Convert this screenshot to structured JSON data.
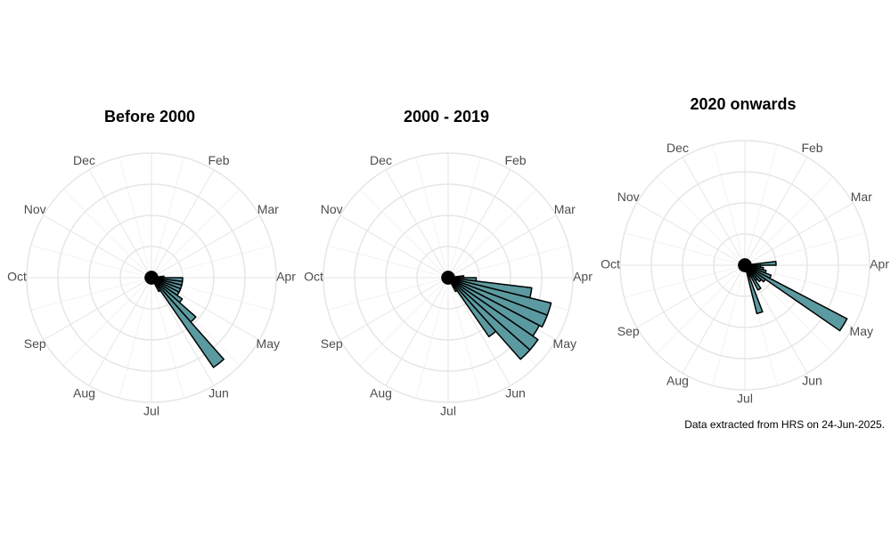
{
  "chart_data": [
    {
      "type": "polar_bar",
      "title": "Before 2000",
      "months": [
        null,
        "Feb",
        "Mar",
        "Apr",
        "May",
        "Jun",
        "Jul",
        "Aug",
        "Sep",
        "Oct",
        "Nov",
        "Dec"
      ],
      "x": [
        1,
        2,
        3,
        4,
        5,
        6,
        7,
        8,
        9,
        10,
        11,
        12,
        13,
        14,
        15,
        16,
        17,
        18,
        19,
        20,
        21,
        22,
        23,
        24,
        25,
        26,
        27,
        28,
        29,
        30,
        31,
        32,
        33,
        34,
        35,
        36,
        37,
        38,
        39,
        40,
        41,
        42,
        43,
        44,
        45,
        46,
        47,
        48,
        49,
        50,
        51,
        52
      ],
      "values": [
        0.2,
        0.2,
        0.2,
        0.2,
        0.2,
        0.2,
        0.2,
        0.2,
        0.2,
        0.2,
        0.2,
        0.2,
        0.4,
        1.0,
        1.0,
        1.0,
        1.0,
        1.0,
        1.2,
        1.9,
        3.5,
        0.5,
        0.2,
        0.2,
        0.2,
        0.2,
        0.2,
        0.2,
        0.2,
        0.2,
        0.2,
        0.2,
        0.2,
        0.2,
        0.2,
        0.2,
        0.2,
        0.2,
        0.2,
        0.2,
        0.2,
        0.2,
        0.2,
        0.2,
        0.2,
        0.2,
        0.2,
        0.2,
        0.2,
        0.2,
        0.2,
        0.2
      ],
      "xlim": [
        0,
        52
      ],
      "rlim": [
        0,
        4
      ],
      "rticks": [
        1,
        2,
        3,
        4
      ],
      "color": "#5b9aa0"
    },
    {
      "type": "polar_bar",
      "title": "2000 - 2019",
      "months": [
        null,
        "Feb",
        "Mar",
        "Apr",
        "May",
        "Jun",
        "Jul",
        "Aug",
        "Sep",
        "Oct",
        "Nov",
        "Dec"
      ],
      "x": [
        1,
        2,
        3,
        4,
        5,
        6,
        7,
        8,
        9,
        10,
        11,
        12,
        13,
        14,
        15,
        16,
        17,
        18,
        19,
        20,
        21,
        22,
        23,
        24,
        25,
        26,
        27,
        28,
        29,
        30,
        31,
        32,
        33,
        34,
        35,
        36,
        37,
        38,
        39,
        40,
        41,
        42,
        43,
        44,
        45,
        46,
        47,
        48,
        49,
        50,
        51,
        52
      ],
      "values": [
        0.2,
        0.2,
        0.2,
        0.2,
        0.2,
        0.2,
        0.2,
        0.2,
        0.2,
        0.2,
        0.2,
        0.2,
        0.5,
        0.9,
        2.7,
        3.4,
        3.4,
        3.3,
        3.5,
        3.5,
        2.3,
        0.5,
        0.2,
        0.2,
        0.2,
        0.2,
        0.2,
        0.2,
        0.2,
        0.2,
        0.2,
        0.2,
        0.2,
        0.2,
        0.2,
        0.2,
        0.2,
        0.2,
        0.2,
        0.2,
        0.2,
        0.2,
        0.2,
        0.2,
        0.2,
        0.2,
        0.2,
        0.2,
        0.2,
        0.2,
        0.2,
        0.2
      ],
      "xlim": [
        0,
        52
      ],
      "rlim": [
        0,
        4
      ],
      "rticks": [
        1,
        2,
        3,
        4
      ],
      "color": "#5b9aa0"
    },
    {
      "type": "polar_bar",
      "title": "2020 onwards",
      "months": [
        null,
        "Feb",
        "Mar",
        "Apr",
        "May",
        "Jun",
        "Jul",
        "Aug",
        "Sep",
        "Oct",
        "Nov",
        "Dec"
      ],
      "x": [
        1,
        2,
        3,
        4,
        5,
        6,
        7,
        8,
        9,
        10,
        11,
        12,
        13,
        14,
        15,
        16,
        17,
        18,
        19,
        20,
        21,
        22,
        23,
        24,
        25,
        26,
        27,
        28,
        29,
        30,
        31,
        32,
        33,
        34,
        35,
        36,
        37,
        38,
        39,
        40,
        41,
        42,
        43,
        44,
        45,
        46,
        47,
        48,
        49,
        50,
        51,
        52
      ],
      "values": [
        0.2,
        0.2,
        0.2,
        0.2,
        0.2,
        0.2,
        0.2,
        0.2,
        0.2,
        0.2,
        0.2,
        0.2,
        1.0,
        0.5,
        0.6,
        0.7,
        0.9,
        3.7,
        0.8,
        0.7,
        0.6,
        0.9,
        0.4,
        1.6,
        0.2,
        0.2,
        0.2,
        0.2,
        0.2,
        0.2,
        0.2,
        0.2,
        0.2,
        0.2,
        0.2,
        0.2,
        0.2,
        0.2,
        0.2,
        0.2,
        0.2,
        0.2,
        0.2,
        0.2,
        0.2,
        0.2,
        0.2,
        0.2,
        0.2,
        0.2,
        0.2,
        0.2
      ],
      "xlim": [
        0,
        52
      ],
      "rlim": [
        0,
        4
      ],
      "rticks": [
        1,
        2,
        3,
        4
      ],
      "color": "#5b9aa0"
    }
  ],
  "caption": "Data extracted from HRS on 24-Jun-2025."
}
